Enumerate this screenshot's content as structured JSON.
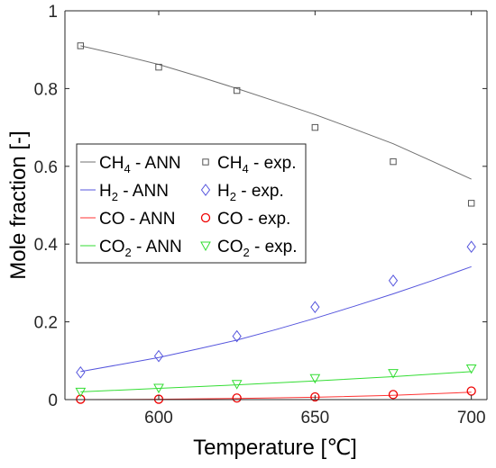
{
  "chart_data": {
    "type": "line",
    "xlabel": "Temperature [℃]",
    "ylabel": "Mole fraction [-]",
    "xlim": [
      570,
      705
    ],
    "ylim": [
      0,
      1
    ],
    "xticks": [
      "600",
      "650",
      "700"
    ],
    "yticks": [
      "0",
      "0.2",
      "0.4",
      "0.6",
      "0.8",
      "1"
    ],
    "x": [
      575,
      600,
      625,
      650,
      675,
      700
    ],
    "legend_placement": "center-left",
    "series": [
      {
        "name": "CH4 - ANN",
        "label_main": "CH",
        "label_sub": "4",
        "label_rest": " - ANN",
        "kind": "line",
        "color": "#707070",
        "x": [
          575,
          587.5,
          600,
          612.5,
          625,
          637.5,
          650,
          662.5,
          675,
          687.5,
          700
        ],
        "values": [
          0.91,
          0.887,
          0.862,
          0.832,
          0.8,
          0.767,
          0.733,
          0.696,
          0.658,
          0.613,
          0.567
        ]
      },
      {
        "name": "CH4 - exp.",
        "label_main": "CH",
        "label_sub": "4",
        "label_rest": " - exp.",
        "kind": "marker",
        "marker": "square",
        "color": "#555555",
        "x": [
          575,
          600,
          625,
          650,
          675,
          700
        ],
        "values": [
          0.91,
          0.855,
          0.795,
          0.7,
          0.612,
          0.505
        ]
      },
      {
        "name": "H2 - ANN",
        "label_main": "H",
        "label_sub": "2",
        "label_rest": " - ANN",
        "kind": "line",
        "color": "#5555dd",
        "x": [
          575,
          587.5,
          600,
          612.5,
          625,
          637.5,
          650,
          662.5,
          675,
          687.5,
          700
        ],
        "values": [
          0.072,
          0.09,
          0.108,
          0.13,
          0.153,
          0.18,
          0.209,
          0.24,
          0.272,
          0.306,
          0.342
        ]
      },
      {
        "name": "H2 - exp.",
        "label_main": "H",
        "label_sub": "2",
        "label_rest": " - exp.",
        "kind": "marker",
        "marker": "diamond",
        "color": "#5555dd",
        "x": [
          575,
          600,
          625,
          650,
          675,
          700
        ],
        "values": [
          0.07,
          0.112,
          0.163,
          0.238,
          0.306,
          0.393
        ]
      },
      {
        "name": "CO - ANN",
        "label_main": "CO",
        "label_sub": "",
        "label_rest": " - ANN",
        "kind": "line",
        "color": "#ff3333",
        "x": [
          575,
          600,
          625,
          650,
          675,
          700
        ],
        "values": [
          0.0,
          0.001,
          0.003,
          0.006,
          0.011,
          0.019
        ]
      },
      {
        "name": "CO - exp.",
        "label_main": "CO",
        "label_sub": "",
        "label_rest": " - exp.",
        "kind": "marker",
        "marker": "circle",
        "color": "#ee0000",
        "x": [
          575,
          600,
          625,
          650,
          675,
          700
        ],
        "values": [
          0.001,
          0.001,
          0.004,
          0.007,
          0.013,
          0.022
        ]
      },
      {
        "name": "CO2 - ANN",
        "label_main": "CO",
        "label_sub": "2",
        "label_rest": " - ANN",
        "kind": "line",
        "color": "#33dd33",
        "x": [
          575,
          600,
          625,
          650,
          675,
          700
        ],
        "values": [
          0.02,
          0.029,
          0.038,
          0.048,
          0.059,
          0.072
        ]
      },
      {
        "name": "CO2 - exp.",
        "label_main": "CO",
        "label_sub": "2",
        "label_rest": " - exp.",
        "kind": "marker",
        "marker": "triangle-down",
        "color": "#33dd33",
        "x": [
          575,
          600,
          625,
          650,
          675,
          700
        ],
        "values": [
          0.02,
          0.03,
          0.04,
          0.055,
          0.068,
          0.08
        ]
      }
    ]
  }
}
